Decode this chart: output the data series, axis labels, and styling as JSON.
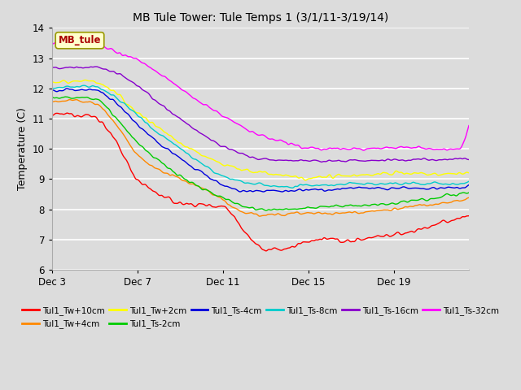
{
  "title": "MB Tule Tower: Tule Temps 1 (3/1/11-3/19/14)",
  "ylabel": "Temperature (C)",
  "ylim": [
    6.0,
    14.0
  ],
  "yticks": [
    6.0,
    7.0,
    8.0,
    9.0,
    10.0,
    11.0,
    12.0,
    13.0,
    14.0
  ],
  "xtick_labels": [
    "Dec 3",
    "Dec 7",
    "Dec 11",
    "Dec 15",
    "Dec 19"
  ],
  "bg_color": "#dcdcdc",
  "series": [
    {
      "label": "Tul1_Tw+10cm",
      "color": "#ff0000",
      "waypoints": [
        [
          0,
          11.1
        ],
        [
          1,
          11.15
        ],
        [
          2,
          11.05
        ],
        [
          3,
          10.2
        ],
        [
          4,
          9.0
        ],
        [
          5,
          8.5
        ],
        [
          6,
          8.2
        ],
        [
          7,
          8.15
        ],
        [
          8,
          8.1
        ],
        [
          9,
          7.3
        ],
        [
          10,
          6.65
        ],
        [
          11,
          6.7
        ],
        [
          12,
          6.95
        ],
        [
          13,
          7.0
        ],
        [
          14,
          6.95
        ],
        [
          15,
          7.1
        ],
        [
          16,
          7.15
        ],
        [
          17,
          7.3
        ],
        [
          18,
          7.5
        ],
        [
          19,
          7.7
        ],
        [
          19.5,
          7.8
        ]
      ],
      "noise": 0.08
    },
    {
      "label": "Tul1_Tw+4cm",
      "color": "#ff8800",
      "waypoints": [
        [
          0,
          11.55
        ],
        [
          1,
          11.6
        ],
        [
          2,
          11.5
        ],
        [
          3,
          10.8
        ],
        [
          4,
          9.8
        ],
        [
          5,
          9.3
        ],
        [
          6,
          9.0
        ],
        [
          7,
          8.7
        ],
        [
          8,
          8.3
        ],
        [
          9,
          7.9
        ],
        [
          10,
          7.8
        ],
        [
          11,
          7.85
        ],
        [
          12,
          7.9
        ],
        [
          13,
          7.85
        ],
        [
          14,
          7.9
        ],
        [
          15,
          7.95
        ],
        [
          16,
          8.0
        ],
        [
          17,
          8.1
        ],
        [
          18,
          8.2
        ],
        [
          19,
          8.3
        ],
        [
          19.5,
          8.35
        ]
      ],
      "noise": 0.06
    },
    {
      "label": "Tul1_Tw+2cm",
      "color": "#ffff00",
      "waypoints": [
        [
          0,
          12.2
        ],
        [
          1,
          12.25
        ],
        [
          2,
          12.2
        ],
        [
          3,
          11.8
        ],
        [
          4,
          11.2
        ],
        [
          5,
          10.7
        ],
        [
          6,
          10.2
        ],
        [
          7,
          9.8
        ],
        [
          8,
          9.5
        ],
        [
          9,
          9.3
        ],
        [
          10,
          9.2
        ],
        [
          11,
          9.1
        ],
        [
          12,
          9.0
        ],
        [
          13,
          9.1
        ],
        [
          14,
          9.1
        ],
        [
          15,
          9.15
        ],
        [
          16,
          9.2
        ],
        [
          17,
          9.2
        ],
        [
          18,
          9.15
        ],
        [
          19,
          9.2
        ],
        [
          19.5,
          9.2
        ]
      ],
      "noise": 0.07
    },
    {
      "label": "Tul1_Ts-2cm",
      "color": "#00cc00",
      "waypoints": [
        [
          0,
          11.65
        ],
        [
          1,
          11.7
        ],
        [
          2,
          11.65
        ],
        [
          3,
          11.0
        ],
        [
          4,
          10.2
        ],
        [
          5,
          9.6
        ],
        [
          6,
          9.1
        ],
        [
          7,
          8.7
        ],
        [
          8,
          8.4
        ],
        [
          9,
          8.1
        ],
        [
          10,
          8.0
        ],
        [
          11,
          8.0
        ],
        [
          12,
          8.05
        ],
        [
          13,
          8.1
        ],
        [
          14,
          8.1
        ],
        [
          15,
          8.15
        ],
        [
          16,
          8.2
        ],
        [
          17,
          8.3
        ],
        [
          18,
          8.4
        ],
        [
          19,
          8.5
        ],
        [
          19.5,
          8.5
        ]
      ],
      "noise": 0.06
    },
    {
      "label": "Tul1_Ts-4cm",
      "color": "#0000dd",
      "waypoints": [
        [
          0,
          11.9
        ],
        [
          1,
          11.95
        ],
        [
          2,
          11.95
        ],
        [
          3,
          11.5
        ],
        [
          4,
          10.8
        ],
        [
          5,
          10.2
        ],
        [
          6,
          9.7
        ],
        [
          7,
          9.2
        ],
        [
          8,
          8.8
        ],
        [
          9,
          8.6
        ],
        [
          10,
          8.6
        ],
        [
          11,
          8.6
        ],
        [
          12,
          8.65
        ],
        [
          13,
          8.65
        ],
        [
          14,
          8.7
        ],
        [
          15,
          8.7
        ],
        [
          16,
          8.7
        ],
        [
          17,
          8.7
        ],
        [
          18,
          8.7
        ],
        [
          19,
          8.7
        ],
        [
          19.5,
          8.75
        ]
      ],
      "noise": 0.05
    },
    {
      "label": "Tul1_Ts-8cm",
      "color": "#00cccc",
      "waypoints": [
        [
          0,
          12.0
        ],
        [
          1,
          12.05
        ],
        [
          2,
          12.05
        ],
        [
          3,
          11.7
        ],
        [
          4,
          11.1
        ],
        [
          5,
          10.5
        ],
        [
          6,
          10.0
        ],
        [
          7,
          9.5
        ],
        [
          8,
          9.1
        ],
        [
          9,
          8.9
        ],
        [
          10,
          8.8
        ],
        [
          11,
          8.75
        ],
        [
          12,
          8.8
        ],
        [
          13,
          8.8
        ],
        [
          14,
          8.85
        ],
        [
          15,
          8.85
        ],
        [
          16,
          8.85
        ],
        [
          17,
          8.85
        ],
        [
          18,
          8.85
        ],
        [
          19,
          8.85
        ],
        [
          19.5,
          8.9
        ]
      ],
      "noise": 0.05
    },
    {
      "label": "Tul1_Ts-16cm",
      "color": "#8800cc",
      "waypoints": [
        [
          0,
          12.65
        ],
        [
          1,
          12.7
        ],
        [
          2,
          12.7
        ],
        [
          3,
          12.5
        ],
        [
          4,
          12.1
        ],
        [
          5,
          11.5
        ],
        [
          6,
          11.0
        ],
        [
          7,
          10.5
        ],
        [
          8,
          10.1
        ],
        [
          9,
          9.8
        ],
        [
          10,
          9.65
        ],
        [
          11,
          9.6
        ],
        [
          12,
          9.6
        ],
        [
          13,
          9.6
        ],
        [
          14,
          9.6
        ],
        [
          15,
          9.6
        ],
        [
          16,
          9.65
        ],
        [
          17,
          9.65
        ],
        [
          18,
          9.65
        ],
        [
          19,
          9.65
        ],
        [
          19.5,
          9.65
        ]
      ],
      "noise": 0.05
    },
    {
      "label": "Tul1_Ts-32cm",
      "color": "#ff00ff",
      "waypoints": [
        [
          0,
          13.5
        ],
        [
          1,
          13.52
        ],
        [
          2,
          13.48
        ],
        [
          3,
          13.2
        ],
        [
          4,
          12.9
        ],
        [
          5,
          12.5
        ],
        [
          6,
          12.0
        ],
        [
          7,
          11.5
        ],
        [
          8,
          11.1
        ],
        [
          9,
          10.7
        ],
        [
          10,
          10.4
        ],
        [
          11,
          10.2
        ],
        [
          12,
          10.05
        ],
        [
          13,
          10.0
        ],
        [
          14,
          10.0
        ],
        [
          15,
          10.0
        ],
        [
          16,
          10.05
        ],
        [
          17,
          10.05
        ],
        [
          18,
          10.0
        ],
        [
          19,
          10.0
        ],
        [
          19.5,
          10.75
        ]
      ],
      "noise": 0.06
    }
  ],
  "n_points": 600,
  "watermark": "MB_tule",
  "legend_ncol": 6
}
